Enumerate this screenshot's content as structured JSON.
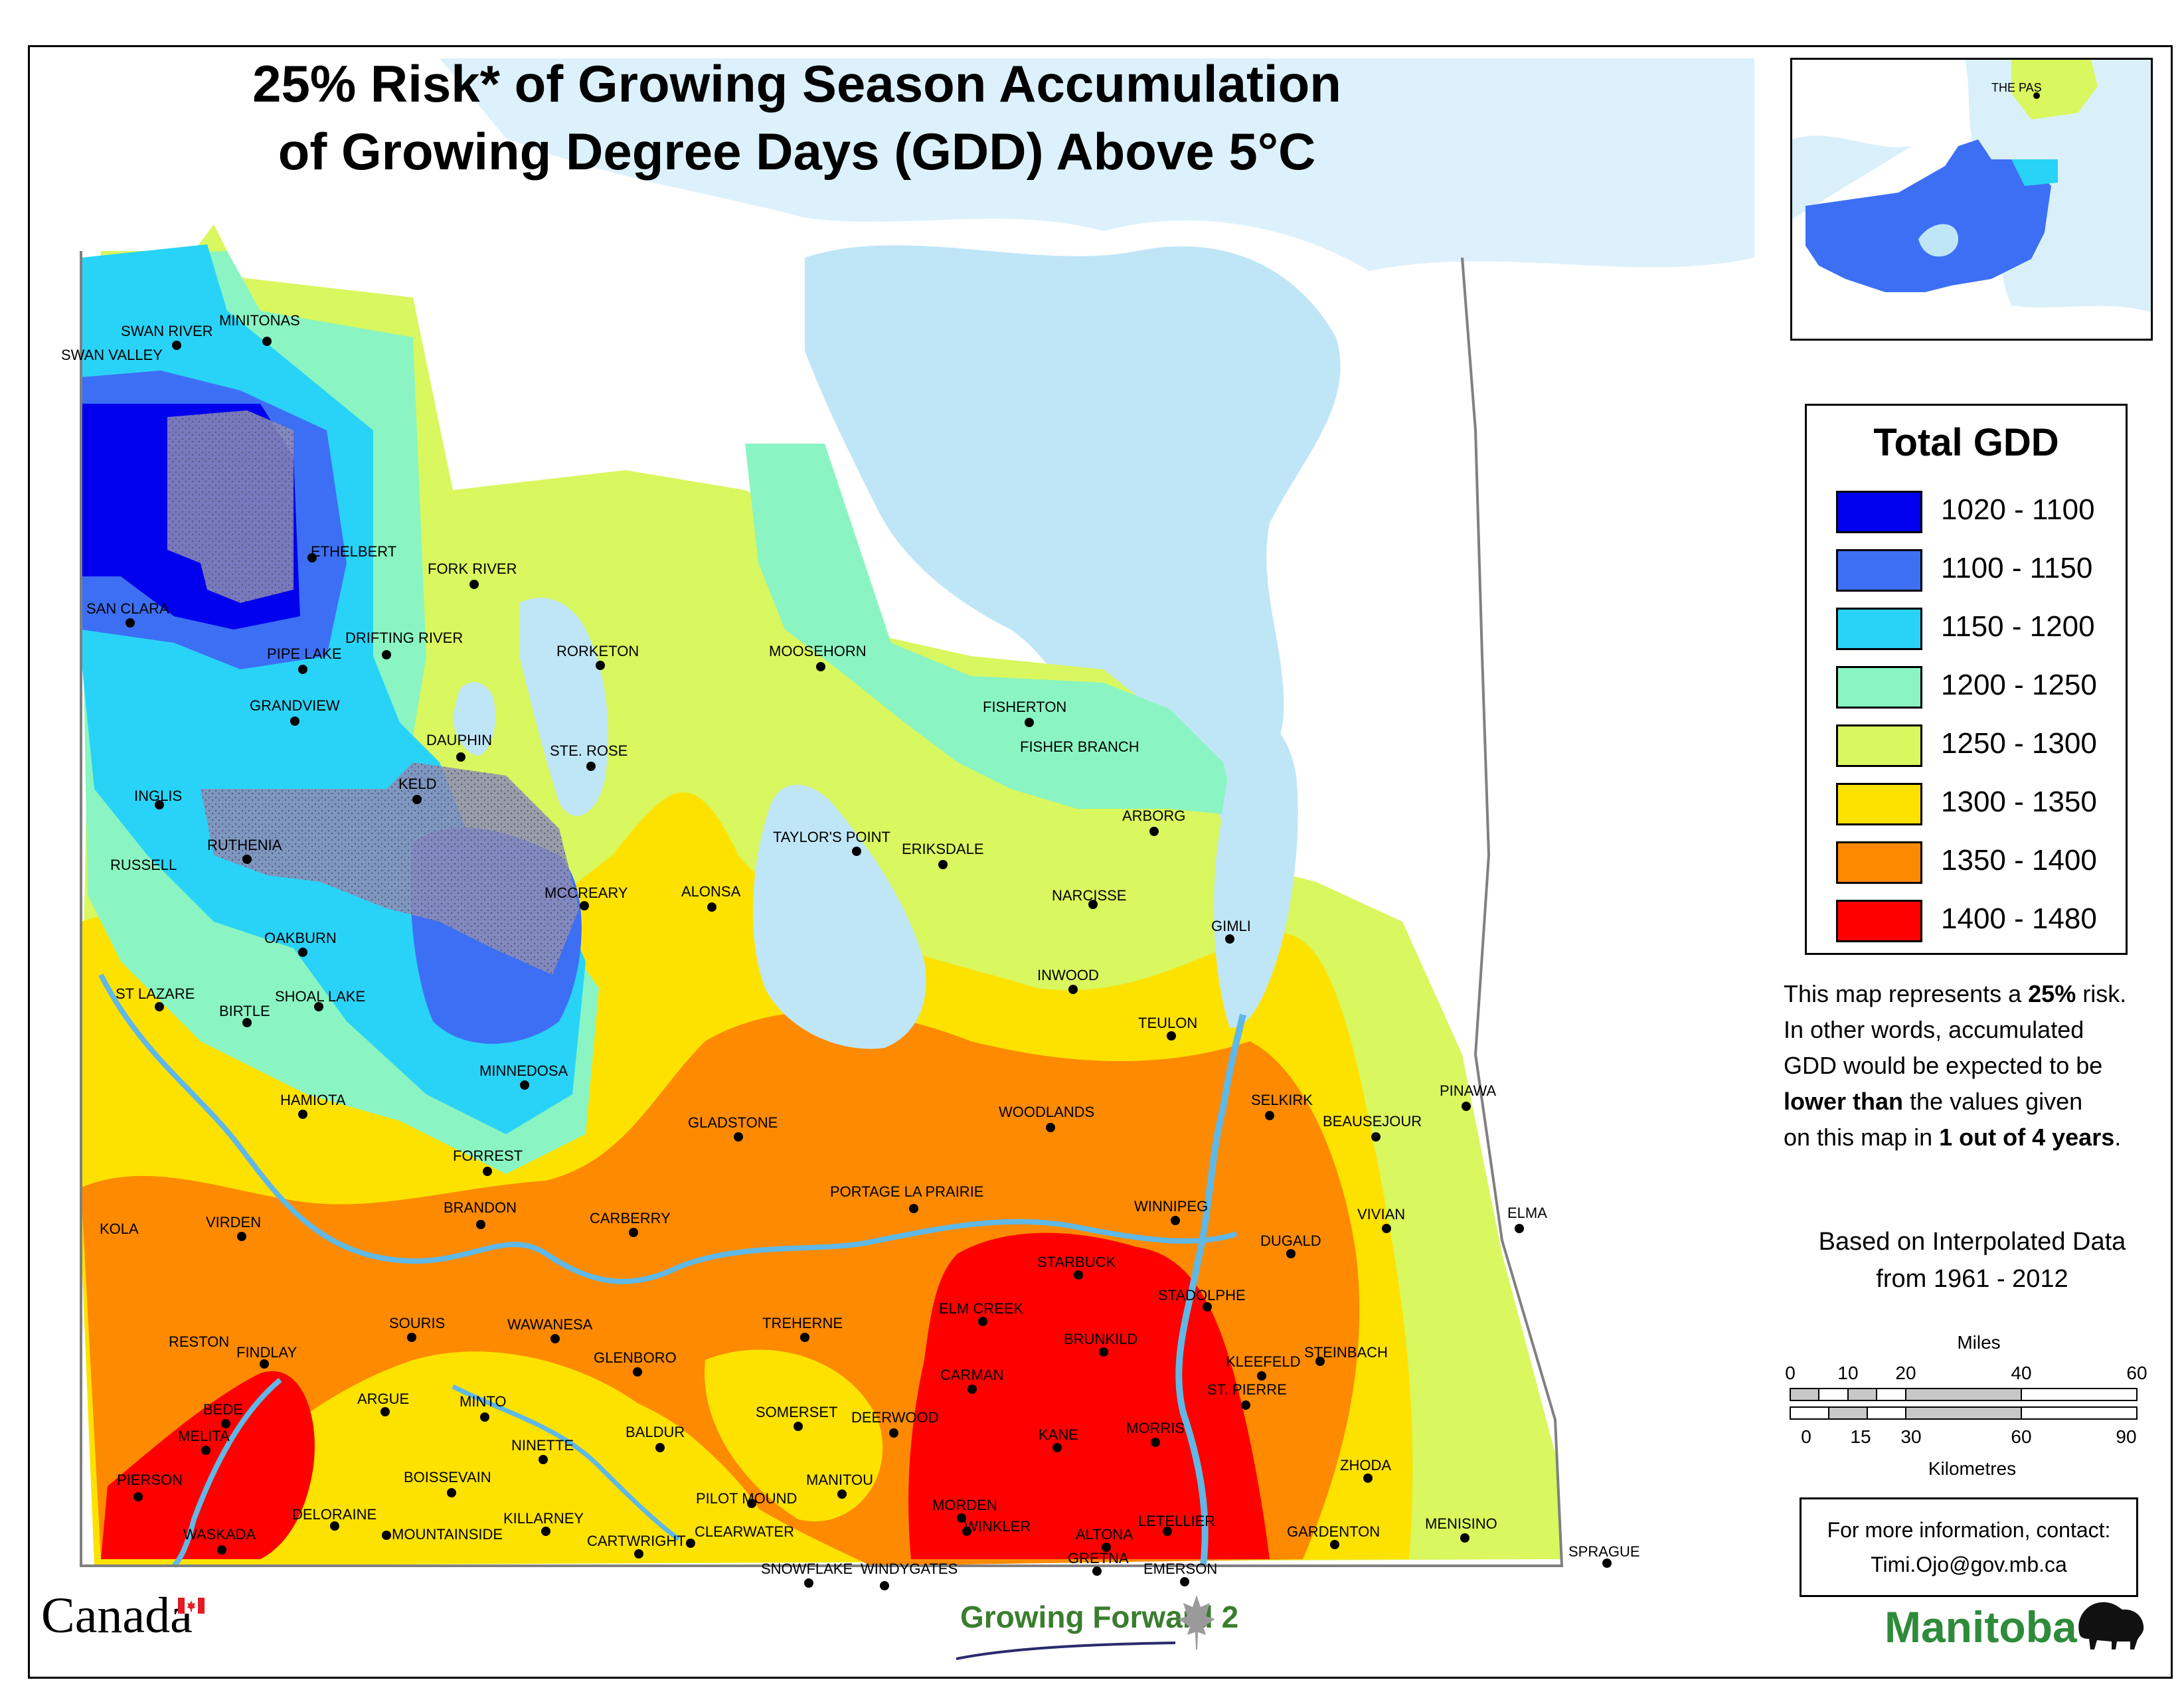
{
  "title": {
    "line1": "25% Risk* of Growing Season Accumulation",
    "line2": "of Growing Degree Days (GDD) Above 5°C"
  },
  "legend": {
    "title": "Total GDD",
    "classes": [
      {
        "label": "1020 - 1100",
        "color": "#0000ee"
      },
      {
        "label": "1100 - 1150",
        "color": "#3d6ff5"
      },
      {
        "label": "1150 - 1200",
        "color": "#29d3f7"
      },
      {
        "label": "1200 - 1250",
        "color": "#8af5c2"
      },
      {
        "label": "1250 - 1300",
        "color": "#d9f75e"
      },
      {
        "label": "1300 - 1350",
        "color": "#fde200"
      },
      {
        "label": "1350 - 1400",
        "color": "#fd8a00"
      },
      {
        "label": "1400 - 1480",
        "color": "#ff0000"
      }
    ]
  },
  "note": {
    "part1": "This map represents a ",
    "bold1": "25%",
    "part2": " risk.",
    "line2": "In other words, accumulated",
    "line3": "GDD would be expected to be",
    "bold2": "lower than",
    "part4": " the values given",
    "part5": "on this map in ",
    "bold3": "1 out of 4 years",
    "part6": "."
  },
  "based_on": {
    "line1": "Based on Interpolated Data",
    "line2": "from 1961 - 2012"
  },
  "scale": {
    "miles_label": "Miles",
    "miles_ticks": [
      "0",
      "10",
      "20",
      "40",
      "60"
    ],
    "km_ticks": [
      "0",
      "15",
      "30",
      "60",
      "90"
    ],
    "km_label": "Kilometres"
  },
  "contact": {
    "line1": "For more information, contact:",
    "line2": "Timi.Ojo@gov.mb.ca"
  },
  "logos": {
    "canada": "Canada",
    "growing_forward": "Growing Forward",
    "growing_forward_num": "2",
    "manitoba": "Manitoba"
  },
  "inset": {
    "town": "THE PAS"
  },
  "colors": {
    "water": "#bfe6f7",
    "border": "#9a9a9a",
    "river": "#5fb8e6",
    "forest_stipple": "#8d8db5"
  },
  "places": [
    {
      "name": "SWAN RIVER"
    },
    {
      "name": "MINITONAS"
    },
    {
      "name": "SWAN VALLEY"
    },
    {
      "name": "ETHELBERT"
    },
    {
      "name": "SAN CLARA"
    },
    {
      "name": "PIPE LAKE"
    },
    {
      "name": "DRIFTING RIVER"
    },
    {
      "name": "FORK RIVER"
    },
    {
      "name": "RORKETON"
    },
    {
      "name": "MOOSEHORN"
    },
    {
      "name": "FISHERTON"
    },
    {
      "name": "FISHER BRANCH"
    },
    {
      "name": "GRANDVIEW"
    },
    {
      "name": "DAUPHIN"
    },
    {
      "name": "STE. ROSE"
    },
    {
      "name": "KELD"
    },
    {
      "name": "INGLIS"
    },
    {
      "name": "RUTHENIA"
    },
    {
      "name": "RUSSELL"
    },
    {
      "name": "TAYLOR'S POINT"
    },
    {
      "name": "ERIKSDALE"
    },
    {
      "name": "ARBORG"
    },
    {
      "name": "MCCREARY"
    },
    {
      "name": "ALONSA"
    },
    {
      "name": "NARCISSE"
    },
    {
      "name": "GIMLI"
    },
    {
      "name": "OAKBURN"
    },
    {
      "name": "INWOOD"
    },
    {
      "name": "ST LAZARE"
    },
    {
      "name": "SHOAL LAKE"
    },
    {
      "name": "BIRTLE"
    },
    {
      "name": "TEULON"
    },
    {
      "name": "MINNEDOSA"
    },
    {
      "name": "HAMIOTA"
    },
    {
      "name": "SELKIRK"
    },
    {
      "name": "PINAWA"
    },
    {
      "name": "GLADSTONE"
    },
    {
      "name": "WOODLANDS"
    },
    {
      "name": "BEAUSEJOUR"
    },
    {
      "name": "FORREST"
    },
    {
      "name": "PORTAGE LA PRAIRIE"
    },
    {
      "name": "BRANDON"
    },
    {
      "name": "WINNIPEG"
    },
    {
      "name": "VIVIAN"
    },
    {
      "name": "ELMA"
    },
    {
      "name": "KOLA"
    },
    {
      "name": "VIRDEN"
    },
    {
      "name": "CARBERRY"
    },
    {
      "name": "DUGALD"
    },
    {
      "name": "STARBUCK"
    },
    {
      "name": "STADOLPHE"
    },
    {
      "name": "ELM CREEK"
    },
    {
      "name": "SOURIS"
    },
    {
      "name": "WAWANESA"
    },
    {
      "name": "TREHERNE"
    },
    {
      "name": "RESTON"
    },
    {
      "name": "BRUNKILD"
    },
    {
      "name": "STEINBACH"
    },
    {
      "name": "FINDLAY"
    },
    {
      "name": "GLENBORO"
    },
    {
      "name": "KLEEFELD"
    },
    {
      "name": "CARMAN"
    },
    {
      "name": "ST. PIERRE"
    },
    {
      "name": "BEDE"
    },
    {
      "name": "ARGUE"
    },
    {
      "name": "MINTO"
    },
    {
      "name": "SOMERSET"
    },
    {
      "name": "DEERWOOD"
    },
    {
      "name": "MELITA"
    },
    {
      "name": "BALDUR"
    },
    {
      "name": "MORRIS"
    },
    {
      "name": "NINETTE"
    },
    {
      "name": "KANE"
    },
    {
      "name": "ZHODA"
    },
    {
      "name": "PIERSON"
    },
    {
      "name": "BOISSEVAIN"
    },
    {
      "name": "MANITOU"
    },
    {
      "name": "PILOT MOUND"
    },
    {
      "name": "MORDEN"
    },
    {
      "name": "DELORAINE"
    },
    {
      "name": "KILLARNEY"
    },
    {
      "name": "LETELLIER"
    },
    {
      "name": "MENISINO"
    },
    {
      "name": "WINKLER"
    },
    {
      "name": "GARDENTON"
    },
    {
      "name": "WASKADA"
    },
    {
      "name": "MOUNTAINSIDE"
    },
    {
      "name": "CARTWRIGHT"
    },
    {
      "name": "CLEARWATER"
    },
    {
      "name": "ALTONA"
    },
    {
      "name": "SPRAGUE"
    },
    {
      "name": "GRETNA"
    },
    {
      "name": "SNOWFLAKE"
    },
    {
      "name": "WINDYGATES"
    },
    {
      "name": "EMERSON"
    }
  ]
}
